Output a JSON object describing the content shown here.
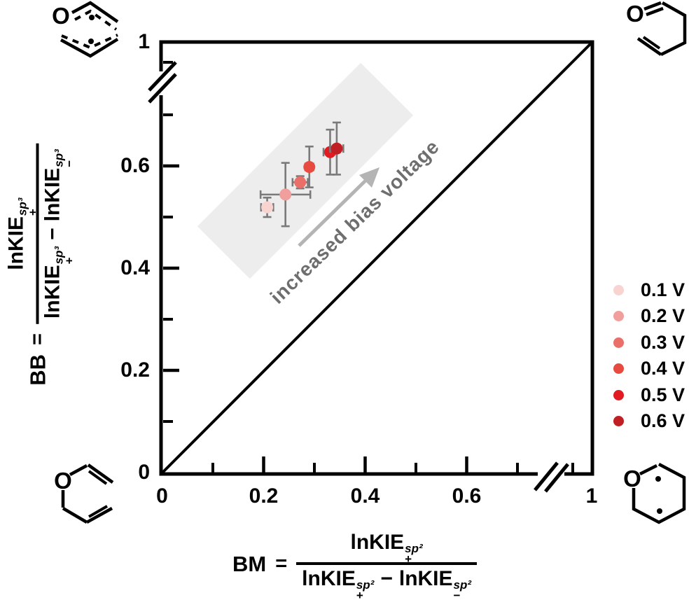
{
  "figure": {
    "background": "#ffffff",
    "annotation": {
      "text": "increased bias voltage",
      "color": "#6e6e6e",
      "angle_deg": -44
    },
    "arrow_color": "#b4b4b4",
    "band_color": "#ededee",
    "errorbar_color": "#7a7a7a"
  },
  "formulas": {
    "y": {
      "lhs": "BB",
      "eq": "=",
      "base": "lnKIE",
      "sup": "sp³",
      "sub_plus": "+",
      "sub_minus": "−",
      "minus": "−"
    },
    "x": {
      "lhs": "BM",
      "eq": "=",
      "base": "lnKIE",
      "sup": "sp²",
      "sub_plus": "+",
      "sub_minus": "−",
      "minus": "−"
    }
  },
  "molecules": {
    "atom_label": "O",
    "top_left": "bond-breaking diradical transition structure",
    "top_right": "pent-4-enal product",
    "bottom_left": "allyl vinyl ether",
    "bottom_right": "oxane-2,5-diyl diradical (bond-making structure)"
  },
  "chart_data": {
    "type": "scatter",
    "title": "",
    "xlabel": "BM = lnKIE+^(sp2) / (lnKIE+^(sp2) − lnKIE−^(sp2))",
    "ylabel": "BB = lnKIE+^(sp3) / (lnKIE+^(sp3) − lnKIE−^(sp3))",
    "xlim": [
      0,
      1
    ],
    "ylim": [
      0,
      1
    ],
    "grid": false,
    "reference_line": {
      "type": "identity",
      "from": [
        0,
        0
      ],
      "to": [
        1,
        1
      ]
    },
    "x_axis": {
      "break_after": 0.7,
      "major_ticks": [
        {
          "value": 0,
          "label": "0"
        },
        {
          "value": 0.2,
          "label": "0.2"
        },
        {
          "value": 0.4,
          "label": "0.4"
        },
        {
          "value": 0.6,
          "label": "0.6"
        },
        {
          "value": 1,
          "label": "1",
          "beyond_break": true
        }
      ],
      "minor_ticks": [
        0.1,
        0.3,
        0.5,
        0.7
      ]
    },
    "y_axis": {
      "break_after": 0.7,
      "major_ticks": [
        {
          "value": 0,
          "label": "0"
        },
        {
          "value": 0.2,
          "label": "0.2"
        },
        {
          "value": 0.4,
          "label": "0.4"
        },
        {
          "value": 0.6,
          "label": "0.6"
        },
        {
          "value": 1,
          "label": "1",
          "beyond_break": true
        }
      ],
      "minor_ticks": [
        0.1,
        0.3,
        0.5,
        0.7
      ]
    },
    "points": [
      {
        "voltage": "0.1 V",
        "x": 0.207,
        "y": 0.519,
        "xerr": 0.012,
        "yerr": 0.019,
        "color": "#f8d3d0"
      },
      {
        "voltage": "0.2 V",
        "x": 0.243,
        "y": 0.544,
        "xerr": 0.049,
        "yerr": 0.062,
        "color": "#f09f9c"
      },
      {
        "voltage": "0.3 V",
        "x": 0.272,
        "y": 0.568,
        "xerr": 0.015,
        "yerr": 0.012,
        "color": "#eb6f69"
      },
      {
        "voltage": "0.4 V",
        "x": 0.29,
        "y": 0.598,
        "xerr": 0.008,
        "yerr": 0.04,
        "color": "#e74a3f"
      },
      {
        "voltage": "0.5 V",
        "x": 0.331,
        "y": 0.627,
        "xerr": 0.013,
        "yerr": 0.044,
        "color": "#e11b21"
      },
      {
        "voltage": "0.6 V",
        "x": 0.344,
        "y": 0.634,
        "xerr": 0.013,
        "yerr": 0.051,
        "color": "#c02024"
      }
    ],
    "legend": {
      "position": "right",
      "entries": [
        {
          "label": "0.1 V",
          "color": "#f8d3d0"
        },
        {
          "label": "0.2 V",
          "color": "#f09f9c"
        },
        {
          "label": "0.3 V",
          "color": "#eb6f69"
        },
        {
          "label": "0.4 V",
          "color": "#e74a3f"
        },
        {
          "label": "0.5 V",
          "color": "#e11b21"
        },
        {
          "label": "0.6 V",
          "color": "#c02024"
        }
      ]
    },
    "annotations": [
      {
        "type": "rotated-text-with-arrow",
        "text": "increased bias voltage"
      },
      {
        "type": "highlight-band-along-trend"
      }
    ]
  }
}
